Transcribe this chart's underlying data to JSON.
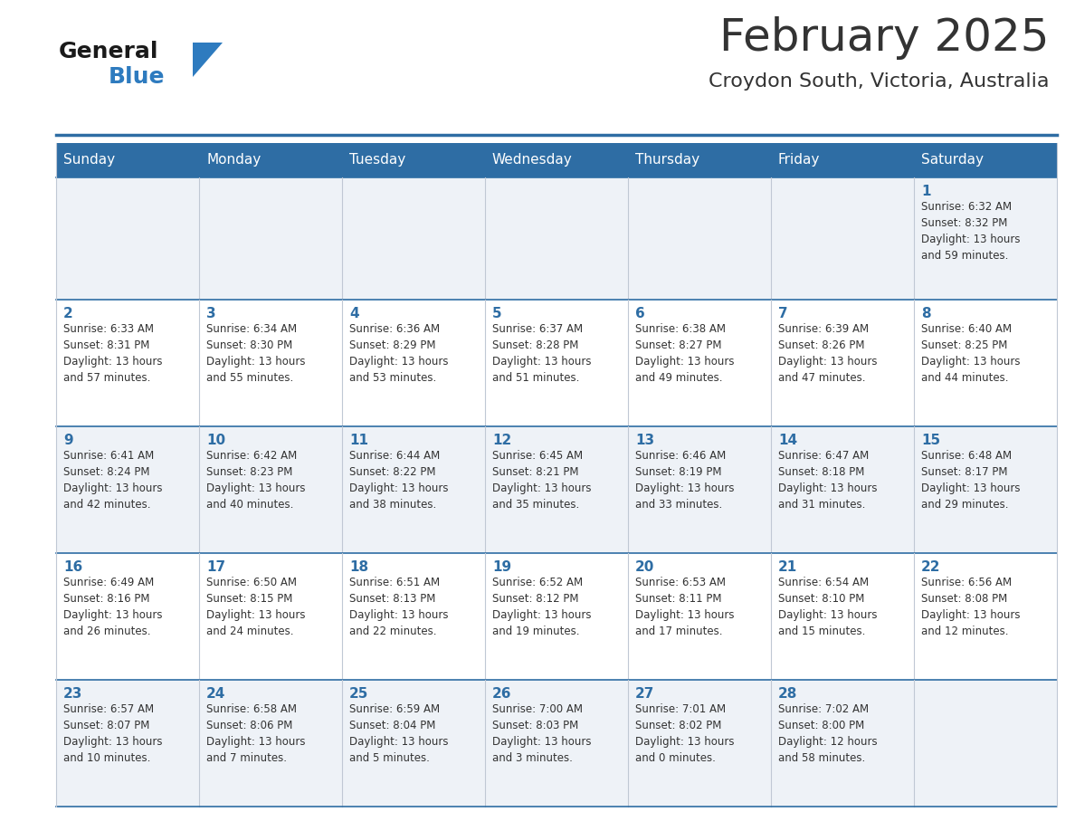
{
  "title": "February 2025",
  "subtitle": "Croydon South, Victoria, Australia",
  "header_bg": "#2e6da4",
  "header_text": "#ffffff",
  "day_names": [
    "Sunday",
    "Monday",
    "Tuesday",
    "Wednesday",
    "Thursday",
    "Friday",
    "Saturday"
  ],
  "row_bg_even": "#eef2f7",
  "row_bg_odd": "#ffffff",
  "cell_border": "#c0c8d4",
  "date_color": "#2e6da4",
  "text_color": "#333333",
  "logo_general_color": "#1a1a1a",
  "logo_blue_color": "#2e7bbf",
  "calendar": [
    [
      null,
      null,
      null,
      null,
      null,
      null,
      {
        "day": 1,
        "sunrise": "6:32 AM",
        "sunset": "8:32 PM",
        "daylight": "13 hours and 59 minutes."
      }
    ],
    [
      {
        "day": 2,
        "sunrise": "6:33 AM",
        "sunset": "8:31 PM",
        "daylight": "13 hours and 57 minutes."
      },
      {
        "day": 3,
        "sunrise": "6:34 AM",
        "sunset": "8:30 PM",
        "daylight": "13 hours and 55 minutes."
      },
      {
        "day": 4,
        "sunrise": "6:36 AM",
        "sunset": "8:29 PM",
        "daylight": "13 hours and 53 minutes."
      },
      {
        "day": 5,
        "sunrise": "6:37 AM",
        "sunset": "8:28 PM",
        "daylight": "13 hours and 51 minutes."
      },
      {
        "day": 6,
        "sunrise": "6:38 AM",
        "sunset": "8:27 PM",
        "daylight": "13 hours and 49 minutes."
      },
      {
        "day": 7,
        "sunrise": "6:39 AM",
        "sunset": "8:26 PM",
        "daylight": "13 hours and 47 minutes."
      },
      {
        "day": 8,
        "sunrise": "6:40 AM",
        "sunset": "8:25 PM",
        "daylight": "13 hours and 44 minutes."
      }
    ],
    [
      {
        "day": 9,
        "sunrise": "6:41 AM",
        "sunset": "8:24 PM",
        "daylight": "13 hours and 42 minutes."
      },
      {
        "day": 10,
        "sunrise": "6:42 AM",
        "sunset": "8:23 PM",
        "daylight": "13 hours and 40 minutes."
      },
      {
        "day": 11,
        "sunrise": "6:44 AM",
        "sunset": "8:22 PM",
        "daylight": "13 hours and 38 minutes."
      },
      {
        "day": 12,
        "sunrise": "6:45 AM",
        "sunset": "8:21 PM",
        "daylight": "13 hours and 35 minutes."
      },
      {
        "day": 13,
        "sunrise": "6:46 AM",
        "sunset": "8:19 PM",
        "daylight": "13 hours and 33 minutes."
      },
      {
        "day": 14,
        "sunrise": "6:47 AM",
        "sunset": "8:18 PM",
        "daylight": "13 hours and 31 minutes."
      },
      {
        "day": 15,
        "sunrise": "6:48 AM",
        "sunset": "8:17 PM",
        "daylight": "13 hours and 29 minutes."
      }
    ],
    [
      {
        "day": 16,
        "sunrise": "6:49 AM",
        "sunset": "8:16 PM",
        "daylight": "13 hours and 26 minutes."
      },
      {
        "day": 17,
        "sunrise": "6:50 AM",
        "sunset": "8:15 PM",
        "daylight": "13 hours and 24 minutes."
      },
      {
        "day": 18,
        "sunrise": "6:51 AM",
        "sunset": "8:13 PM",
        "daylight": "13 hours and 22 minutes."
      },
      {
        "day": 19,
        "sunrise": "6:52 AM",
        "sunset": "8:12 PM",
        "daylight": "13 hours and 19 minutes."
      },
      {
        "day": 20,
        "sunrise": "6:53 AM",
        "sunset": "8:11 PM",
        "daylight": "13 hours and 17 minutes."
      },
      {
        "day": 21,
        "sunrise": "6:54 AM",
        "sunset": "8:10 PM",
        "daylight": "13 hours and 15 minutes."
      },
      {
        "day": 22,
        "sunrise": "6:56 AM",
        "sunset": "8:08 PM",
        "daylight": "13 hours and 12 minutes."
      }
    ],
    [
      {
        "day": 23,
        "sunrise": "6:57 AM",
        "sunset": "8:07 PM",
        "daylight": "13 hours and 10 minutes."
      },
      {
        "day": 24,
        "sunrise": "6:58 AM",
        "sunset": "8:06 PM",
        "daylight": "13 hours and 7 minutes."
      },
      {
        "day": 25,
        "sunrise": "6:59 AM",
        "sunset": "8:04 PM",
        "daylight": "13 hours and 5 minutes."
      },
      {
        "day": 26,
        "sunrise": "7:00 AM",
        "sunset": "8:03 PM",
        "daylight": "13 hours and 3 minutes."
      },
      {
        "day": 27,
        "sunrise": "7:01 AM",
        "sunset": "8:02 PM",
        "daylight": "13 hours and 0 minutes."
      },
      {
        "day": 28,
        "sunrise": "7:02 AM",
        "sunset": "8:00 PM",
        "daylight": "12 hours and 58 minutes."
      },
      null
    ]
  ]
}
